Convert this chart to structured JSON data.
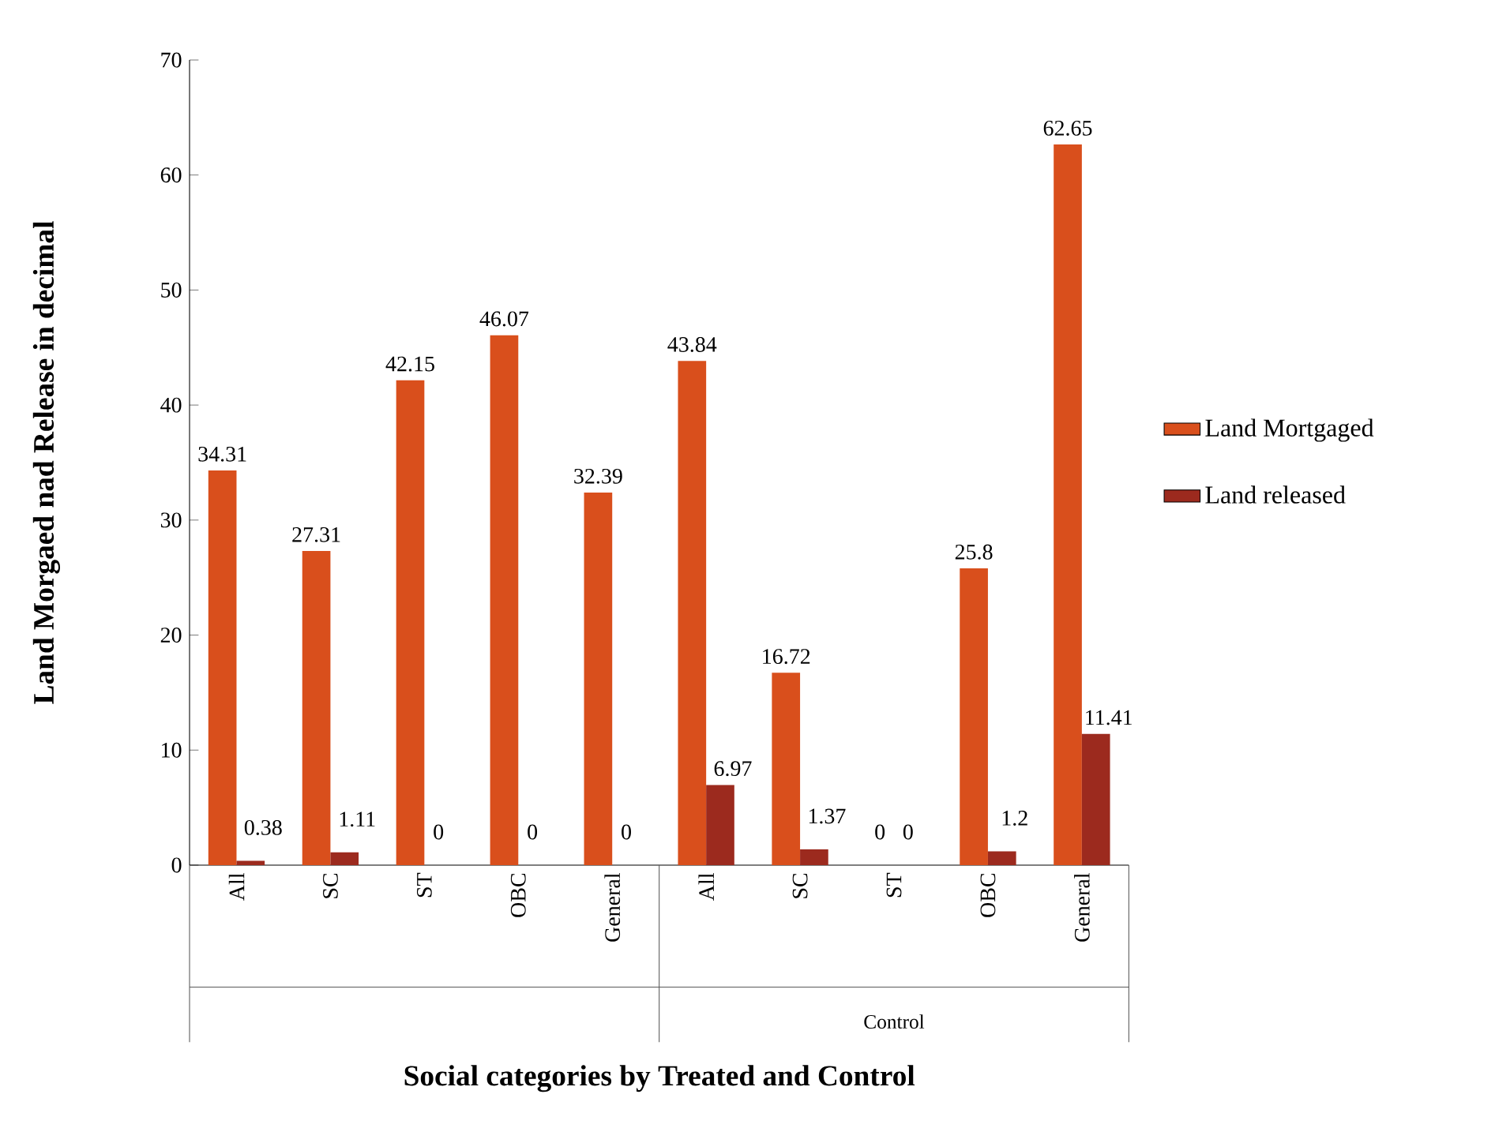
{
  "chart_data": {
    "type": "bar",
    "xlabel": "Social categories by Treated and Control",
    "ylabel": "Land Morgaed nad Release in decimal",
    "categories": [
      "All",
      "SC",
      "ST",
      "OBC",
      "General",
      "All",
      "SC",
      "ST",
      "OBC",
      "General"
    ],
    "series": [
      {
        "name": "Land  Mortgaged",
        "color": "#d94f1c",
        "values": [
          34.31,
          27.31,
          42.15,
          46.07,
          32.39,
          43.84,
          16.72,
          0,
          25.8,
          62.65
        ]
      },
      {
        "name": "Land released",
        "color": "#9c2a1e",
        "values": [
          0.38,
          1.11,
          0,
          0,
          0,
          6.97,
          1.37,
          0,
          1.2,
          11.41
        ]
      }
    ],
    "annotations": [
      "Control"
    ],
    "ylim": [
      0,
      70
    ],
    "yticks": [
      0,
      10,
      20,
      30,
      40,
      50,
      60,
      70
    ],
    "data_labels": true,
    "legend": "right",
    "grid": false
  }
}
